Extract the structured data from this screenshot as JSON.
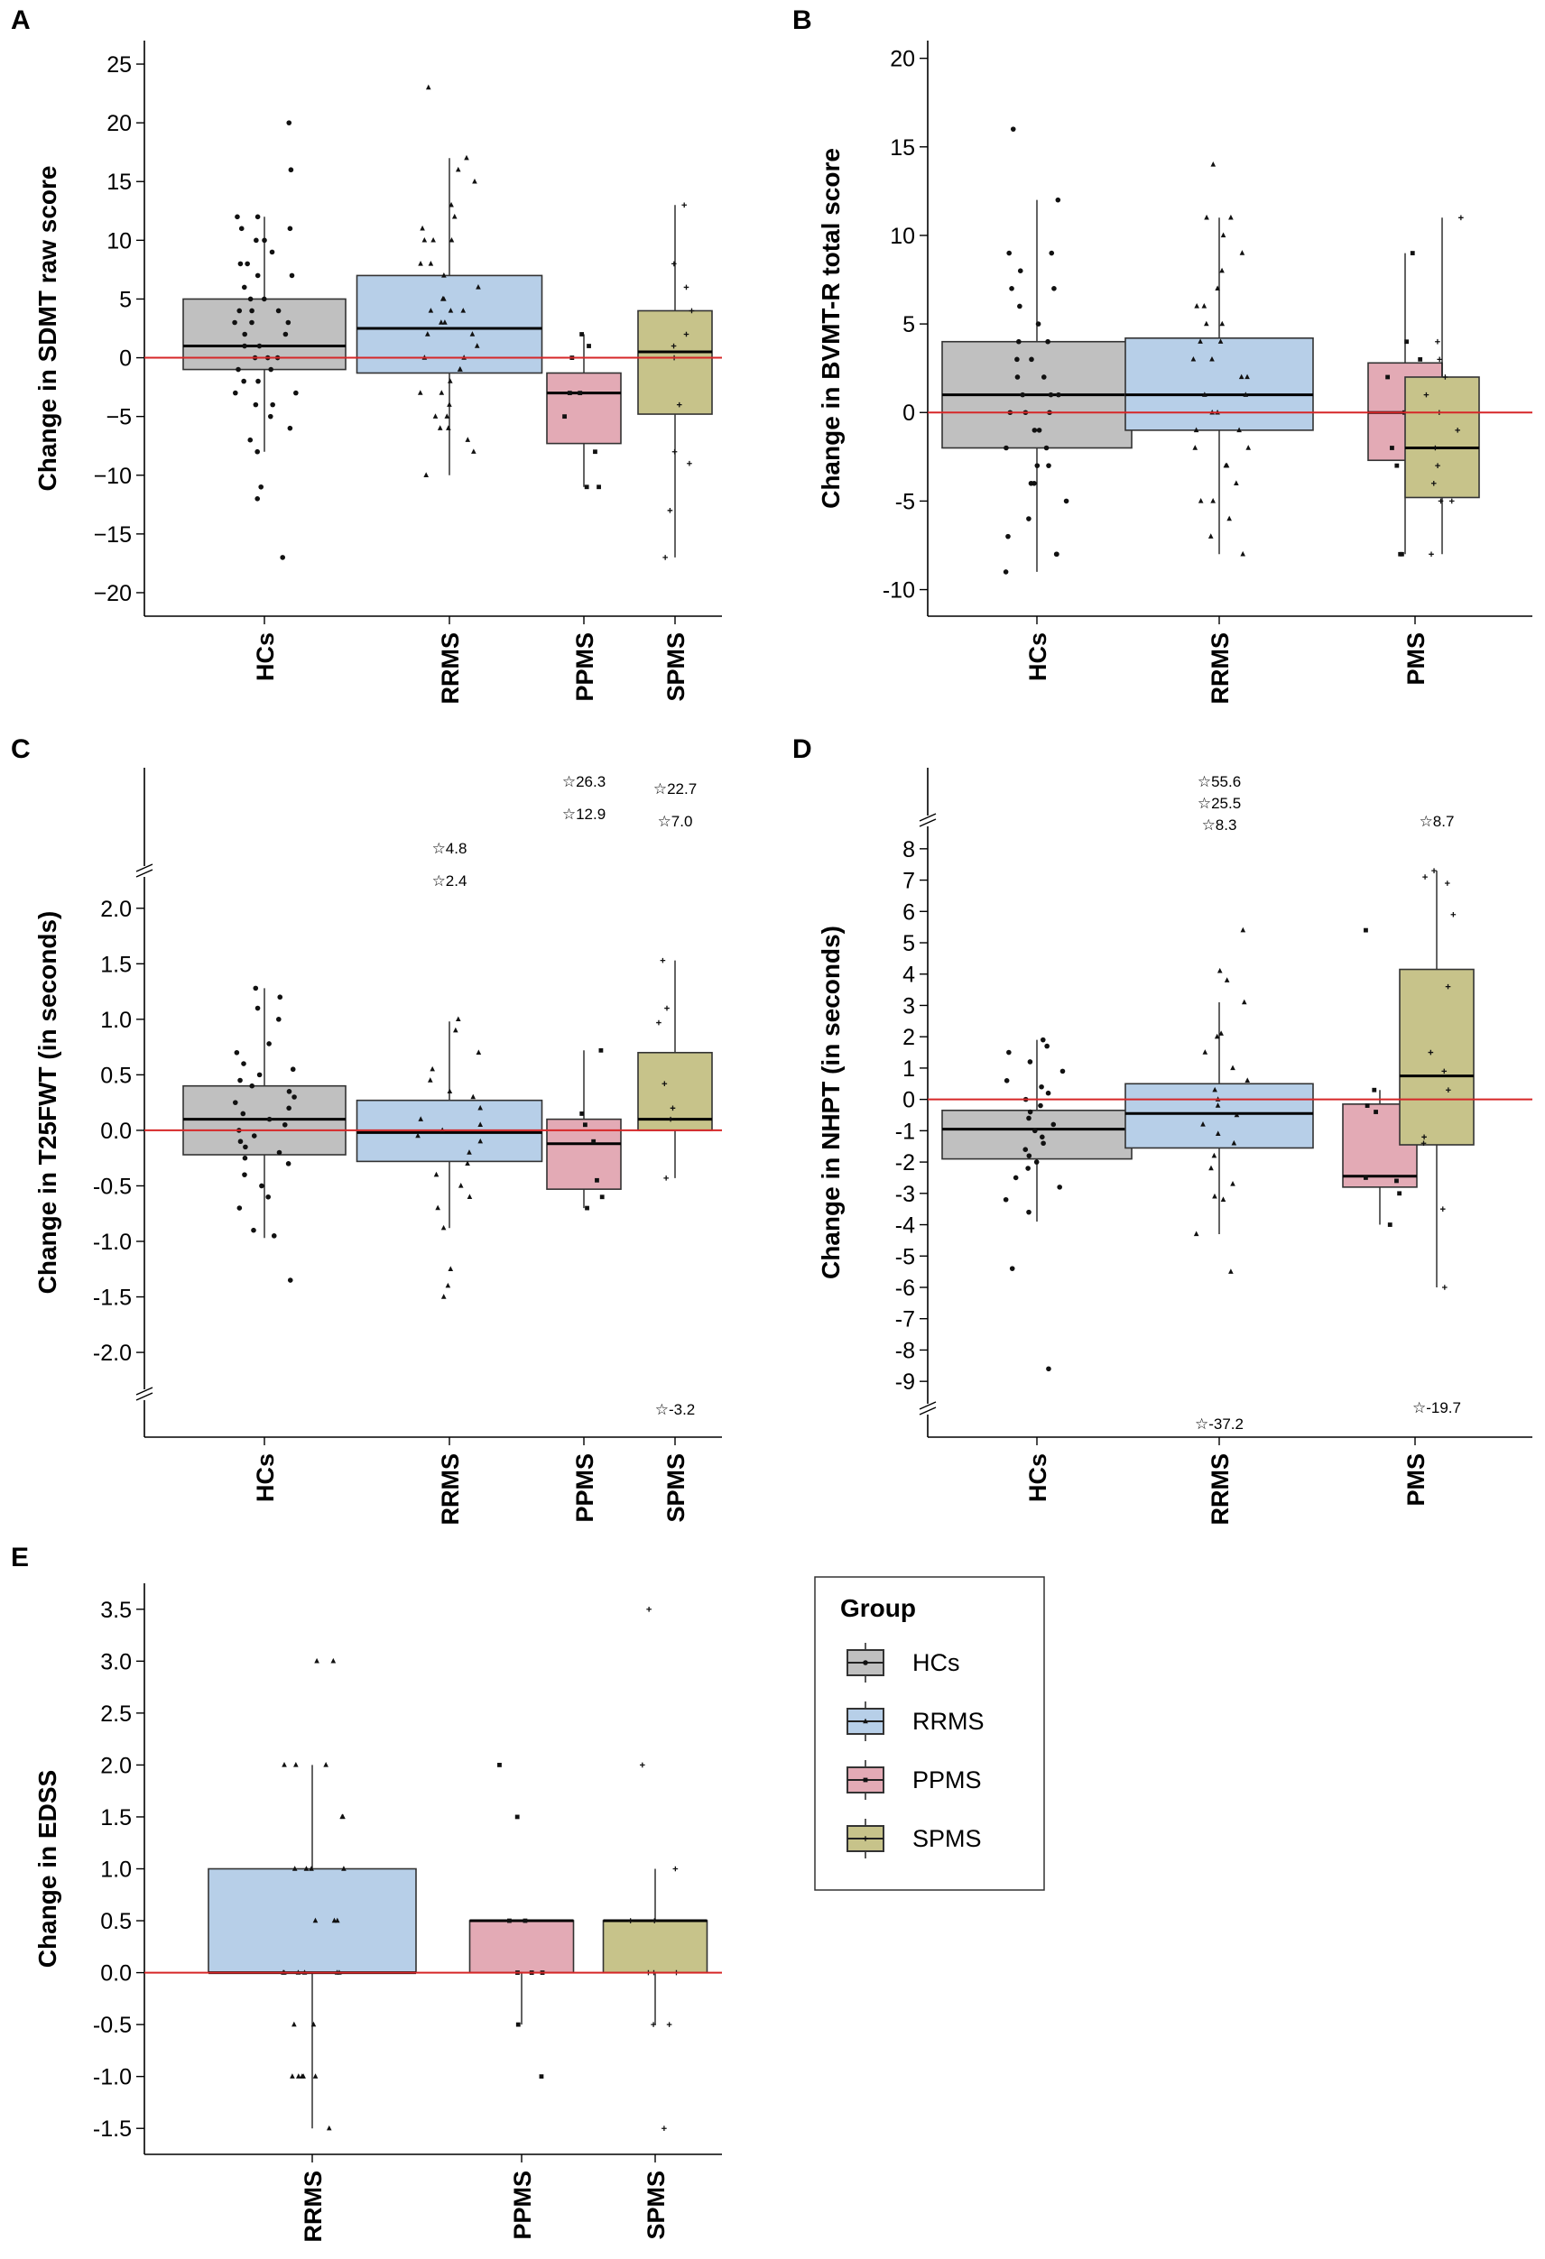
{
  "colors": {
    "HCs": "#c0c0c0",
    "RRMS": "#b7cfe8",
    "PPMS": "#e3aab5",
    "SPMS": "#c7c38a",
    "PMS_B": "#e3aab5",
    "PMS_D": "#e3aab5",
    "refline": "#d62728",
    "axis": "#000000"
  },
  "legend": {
    "title": "Group",
    "items": [
      {
        "label": "HCs",
        "color": "#c0c0c0",
        "marker": "circle"
      },
      {
        "label": "RRMS",
        "color": "#b7cfe8",
        "marker": "triangle"
      },
      {
        "label": "PPMS",
        "color": "#e3aab5",
        "marker": "square"
      },
      {
        "label": "SPMS",
        "color": "#c7c38a",
        "marker": "plus"
      }
    ]
  },
  "chart_data": [
    {
      "id": "A",
      "panel_label": "A",
      "type": "box",
      "ylabel": "Change in SDMT raw score",
      "ylim": [
        -22,
        27
      ],
      "yticks": [
        25,
        20,
        15,
        10,
        5,
        0,
        -5,
        -10,
        -15,
        -20
      ],
      "ytick_labels": [
        "25",
        "20",
        "15",
        "10",
        "5",
        "0",
        "−5",
        "−10",
        "−15",
        "−20"
      ],
      "refline": 0,
      "groups": [
        {
          "name": "HCs",
          "color": "#c0c0c0",
          "marker": "circle",
          "q1": -1,
          "median": 1,
          "q3": 5,
          "whisker_low": -8,
          "whisker_high": 12,
          "points": [
            20,
            16,
            12,
            12,
            11,
            11,
            10,
            10,
            9,
            8,
            8,
            7,
            7,
            6,
            5,
            5,
            4,
            4,
            4,
            3,
            3,
            3,
            2,
            2,
            1,
            1,
            0,
            0,
            0,
            -1,
            -1,
            -2,
            -2,
            -3,
            -3,
            -4,
            -4,
            -5,
            -6,
            -7,
            -8,
            -11,
            -12,
            -17
          ]
        },
        {
          "name": "RRMS",
          "color": "#b7cfe8",
          "marker": "triangle",
          "q1": -1.3,
          "median": 2.5,
          "q3": 7,
          "whisker_low": -10,
          "whisker_high": 17,
          "points": [
            23,
            17,
            16,
            15,
            13,
            12,
            11,
            10,
            10,
            10,
            8,
            8,
            7,
            6,
            5,
            5,
            4,
            4,
            4,
            3,
            3,
            2,
            2,
            1,
            0,
            0,
            -1,
            -1,
            -2,
            -3,
            -3,
            -4,
            -5,
            -5,
            -6,
            -6,
            -7,
            -8,
            -10
          ]
        },
        {
          "name": "PPMS",
          "color": "#e3aab5",
          "marker": "square",
          "q1": -7.3,
          "median": -3,
          "q3": -1.3,
          "whisker_low": -11,
          "whisker_high": 2,
          "points": [
            2,
            1,
            0,
            -3,
            -3,
            -5,
            -8,
            -11,
            -11
          ]
        },
        {
          "name": "SPMS",
          "color": "#c7c38a",
          "marker": "plus",
          "q1": -4.8,
          "median": 0.5,
          "q3": 4,
          "whisker_low": -17,
          "whisker_high": 13,
          "points": [
            13,
            8,
            6,
            4,
            2,
            1,
            0,
            -4,
            -8,
            -9,
            -13,
            -17
          ]
        }
      ]
    },
    {
      "id": "B",
      "panel_label": "B",
      "type": "box",
      "ylabel": "Change in BVMT-R total score",
      "ylim": [
        -11.5,
        21
      ],
      "yticks": [
        20,
        15,
        10,
        5,
        0,
        -5,
        -10
      ],
      "ytick_labels": [
        "20",
        "15",
        "10",
        "5",
        "0",
        "-5",
        "-10"
      ],
      "refline": 0,
      "groups": [
        {
          "name": "HCs",
          "color": "#c0c0c0",
          "marker": "circle",
          "q1": -2,
          "median": 1,
          "q3": 4,
          "whisker_low": -9,
          "whisker_high": 12,
          "points": [
            16,
            12,
            9,
            9,
            8,
            7,
            7,
            6,
            5,
            4,
            4,
            3,
            3,
            2,
            2,
            1,
            1,
            1,
            0,
            0,
            0,
            -1,
            -1,
            -2,
            -2,
            -3,
            -3,
            -4,
            -4,
            -5,
            -6,
            -7,
            -8,
            -8,
            -9
          ]
        },
        {
          "name": "RRMS",
          "color": "#b7cfe8",
          "marker": "triangle",
          "q1": -1,
          "median": 1,
          "q3": 4.2,
          "whisker_low": -8,
          "whisker_high": 11,
          "points": [
            14,
            11,
            11,
            10,
            9,
            8,
            7,
            6,
            6,
            5,
            5,
            4,
            4,
            3,
            3,
            2,
            2,
            1,
            1,
            0,
            0,
            -1,
            -1,
            -2,
            -2,
            -3,
            -3,
            -4,
            -5,
            -5,
            -6,
            -7,
            -8
          ]
        },
        {
          "name": "PMS",
          "color": "#e3aab5",
          "marker": "square",
          "q1": -2.7,
          "median": 0,
          "q3": 2.8,
          "whisker_low": -8,
          "whisker_high": 9,
          "points": [
            9,
            4,
            3,
            2,
            0,
            -2,
            -2,
            -3,
            -4,
            -8,
            -8
          ]
        },
        {
          "name": "PMS",
          "color": "#c7c38a",
          "marker": "plus",
          "q1": -4.8,
          "median": -2,
          "q3": 2,
          "whisker_low": -8,
          "whisker_high": 11,
          "points": [
            11,
            4,
            3,
            2,
            1,
            0,
            -1,
            -2,
            -3,
            -4,
            -5,
            -5,
            -8
          ]
        }
      ]
    },
    {
      "id": "C",
      "panel_label": "C",
      "type": "box",
      "ylabel": "T25FWT (in seconds)",
      "ylabel_prefix": "Change in",
      "ylim": [
        -2.3,
        2.25
      ],
      "yticks": [
        2.0,
        1.5,
        1.0,
        0.5,
        0.0,
        -0.5,
        -1.0,
        -1.5,
        -2.0
      ],
      "ytick_labels": [
        "2.0",
        "1.5",
        "1.0",
        "0.5",
        "0.0",
        "-0.5",
        "-1.0",
        "-1.5",
        "-2.0"
      ],
      "refline": 0,
      "annotations": [
        {
          "group": "RRMS",
          "labels": [
            "☆4.8",
            "☆2.4"
          ]
        },
        {
          "group": "PPMS",
          "labels": [
            "☆26.3",
            "☆12.9"
          ]
        },
        {
          "group": "SPMS",
          "labels": [
            "☆22.7",
            "☆7.0"
          ]
        },
        {
          "group": "SPMS",
          "labels": [
            "☆-3.2"
          ],
          "position": "bottom"
        }
      ],
      "groups": [
        {
          "name": "HCs",
          "color": "#c0c0c0",
          "marker": "circle",
          "q1": -0.22,
          "median": 0.1,
          "q3": 0.4,
          "whisker_low": -0.97,
          "whisker_high": 1.28,
          "points": [
            1.28,
            1.2,
            1.1,
            1.0,
            0.78,
            0.7,
            0.6,
            0.55,
            0.5,
            0.45,
            0.4,
            0.35,
            0.3,
            0.25,
            0.2,
            0.15,
            0.1,
            0.05,
            0.0,
            -0.05,
            -0.1,
            -0.15,
            -0.2,
            -0.25,
            -0.3,
            -0.4,
            -0.5,
            -0.6,
            -0.7,
            -0.9,
            -0.95,
            -1.35
          ]
        },
        {
          "name": "RRMS",
          "color": "#b7cfe8",
          "marker": "triangle",
          "q1": -0.28,
          "median": -0.02,
          "q3": 0.27,
          "whisker_low": -0.88,
          "whisker_high": 0.98,
          "points": [
            1.0,
            0.9,
            0.7,
            0.55,
            0.45,
            0.35,
            0.3,
            0.2,
            0.1,
            0.05,
            0.0,
            -0.05,
            -0.1,
            -0.2,
            -0.3,
            -0.4,
            -0.5,
            -0.6,
            -0.7,
            -0.88,
            -1.25,
            -1.4,
            -1.5
          ]
        },
        {
          "name": "PPMS",
          "color": "#e3aab5",
          "marker": "square",
          "q1": -0.53,
          "median": -0.12,
          "q3": 0.1,
          "whisker_low": -0.7,
          "whisker_high": 0.72,
          "points": [
            0.72,
            0.15,
            0.05,
            -0.1,
            -0.45,
            -0.6,
            -0.7
          ]
        },
        {
          "name": "SPMS",
          "color": "#c7c38a",
          "marker": "plus",
          "q1": 0.0,
          "median": 0.1,
          "q3": 0.7,
          "whisker_low": -0.43,
          "whisker_high": 1.53,
          "points": [
            1.53,
            1.1,
            0.97,
            0.42,
            0.2,
            0.1,
            -0.43
          ]
        }
      ]
    },
    {
      "id": "D",
      "panel_label": "D",
      "type": "box",
      "ylabel": "Change in NHPT (in seconds)",
      "ylim": [
        -9.6,
        8.6
      ],
      "yticks": [
        8,
        7,
        6,
        5,
        4,
        3,
        2,
        1,
        0,
        -1,
        -2,
        -3,
        -4,
        -5,
        -6,
        -7,
        -8,
        -9
      ],
      "ytick_labels": [
        "8",
        "7",
        "6",
        "5",
        "4",
        "3",
        "2",
        "1",
        "0",
        "-1",
        "-2",
        "-3",
        "-4",
        "-5",
        "-6",
        "-7",
        "-8",
        "-9"
      ],
      "refline": 0,
      "annotations": [
        {
          "group": "RRMS",
          "labels": [
            "☆55.6",
            "☆25.5",
            "☆8.3"
          ]
        },
        {
          "group": "PMS",
          "labels": [
            "☆8.7"
          ]
        },
        {
          "group": "RRMS",
          "labels": [
            "☆-37.2"
          ],
          "position": "bottom"
        },
        {
          "group": "PMS",
          "labels": [
            "☆-19.7"
          ],
          "position": "bottom"
        }
      ],
      "groups": [
        {
          "name": "HCs",
          "color": "#c0c0c0",
          "marker": "circle",
          "q1": -1.9,
          "median": -0.95,
          "q3": -0.35,
          "whisker_low": -3.9,
          "whisker_high": 1.9,
          "points": [
            1.9,
            1.7,
            1.5,
            1.2,
            0.9,
            0.6,
            0.4,
            0.2,
            0.0,
            -0.2,
            -0.4,
            -0.6,
            -0.8,
            -1.0,
            -1.2,
            -1.4,
            -1.6,
            -1.8,
            -2.0,
            -2.2,
            -2.5,
            -2.8,
            -3.2,
            -3.6,
            -5.4,
            -8.6
          ]
        },
        {
          "name": "RRMS",
          "color": "#b7cfe8",
          "marker": "triangle",
          "q1": -1.55,
          "median": -0.45,
          "q3": 0.5,
          "whisker_low": -4.3,
          "whisker_high": 3.1,
          "points": [
            5.4,
            4.1,
            3.8,
            3.1,
            2.1,
            2.0,
            1.5,
            1.0,
            0.6,
            0.3,
            0.0,
            -0.2,
            -0.5,
            -0.8,
            -1.1,
            -1.4,
            -1.8,
            -2.2,
            -2.7,
            -3.1,
            -3.2,
            -4.3,
            -5.5
          ]
        },
        {
          "name": "PMS",
          "color": "#e3aab5",
          "marker": "square",
          "q1": -2.8,
          "median": -2.45,
          "q3": -0.15,
          "whisker_low": -4.0,
          "whisker_high": 0.3,
          "points": [
            5.4,
            0.3,
            -0.2,
            -0.4,
            -2.5,
            -2.6,
            -3.0,
            -4.0
          ]
        },
        {
          "name": "PMS",
          "color": "#c7c38a",
          "marker": "plus",
          "q1": -1.45,
          "median": 0.75,
          "q3": 4.15,
          "whisker_low": -6.0,
          "whisker_high": 7.3,
          "points": [
            7.3,
            7.1,
            6.9,
            5.9,
            3.6,
            1.5,
            0.9,
            0.3,
            -1.2,
            -1.4,
            -3.5,
            -6.0
          ]
        }
      ]
    },
    {
      "id": "E",
      "panel_label": "E",
      "type": "box",
      "ylabel": "Change in EDSS",
      "ylim": [
        -1.75,
        3.75
      ],
      "yticks": [
        3.5,
        3.0,
        2.5,
        2.0,
        1.5,
        1.0,
        0.5,
        0.0,
        -0.5,
        -1.0,
        -1.5
      ],
      "ytick_labels": [
        "3.5",
        "3.0",
        "2.5",
        "2.0",
        "1.5",
        "1.0",
        "0.5",
        "0.0",
        "-0.5",
        "-1.0",
        "-1.5"
      ],
      "refline": 0,
      "groups": [
        {
          "name": "RRMS",
          "color": "#b7cfe8",
          "marker": "triangle",
          "q1": 0.0,
          "median": 0.0,
          "q3": 1.0,
          "whisker_low": -1.5,
          "whisker_high": 2.0,
          "points": [
            3.0,
            3.0,
            2.0,
            2.0,
            2.0,
            1.5,
            1.5,
            1.0,
            1.0,
            1.0,
            1.0,
            0.5,
            0.5,
            0.5,
            0.0,
            0.0,
            0.0,
            0.0,
            0.0,
            0.0,
            -0.5,
            -0.5,
            -1.0,
            -1.0,
            -1.0,
            -1.0,
            -1.0,
            -1.5
          ]
        },
        {
          "name": "PPMS",
          "color": "#e3aab5",
          "marker": "square",
          "q1": 0.0,
          "median": 0.5,
          "q3": 0.5,
          "whisker_low": -0.5,
          "whisker_high": 0.5,
          "points": [
            2.0,
            1.5,
            0.5,
            0.5,
            0.0,
            0.0,
            0.0,
            -0.5,
            -1.0
          ]
        },
        {
          "name": "SPMS",
          "color": "#c7c38a",
          "marker": "plus",
          "q1": 0.0,
          "median": 0.5,
          "q3": 0.5,
          "whisker_low": -0.5,
          "whisker_high": 1.0,
          "points": [
            3.5,
            2.0,
            1.0,
            0.5,
            0.5,
            0.0,
            0.0,
            0.0,
            -0.5,
            -0.5,
            -1.5
          ]
        }
      ]
    }
  ]
}
